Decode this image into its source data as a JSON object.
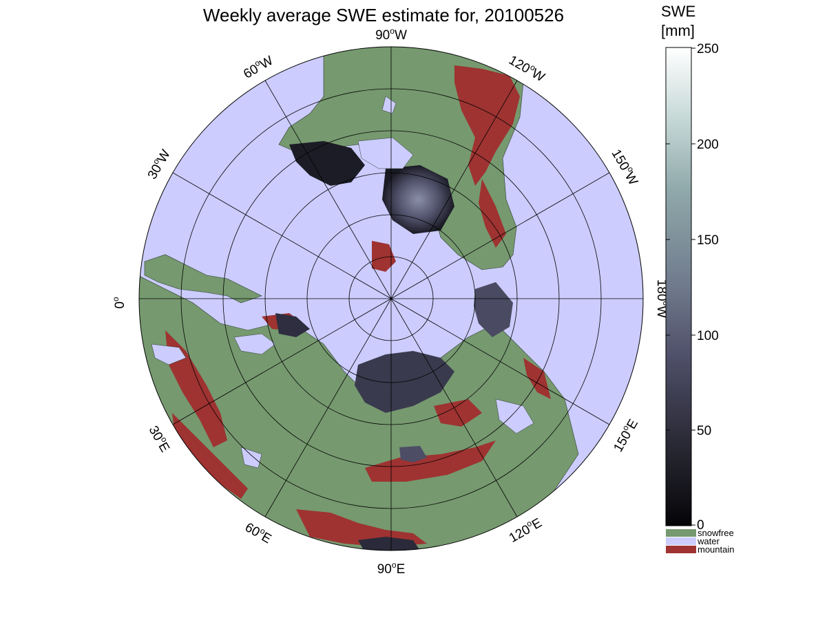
{
  "title": "Weekly average SWE estimate for, 20100526",
  "colorbar": {
    "label_line1": "SWE",
    "label_line2": "[mm]",
    "ticks": [
      "250",
      "200",
      "150",
      "100",
      "50",
      "0"
    ],
    "range": [
      0,
      250
    ],
    "categories": [
      {
        "name": "snowfree",
        "color": "#76996f"
      },
      {
        "name": "water",
        "color": "#ccccff"
      },
      {
        "name": "mountain",
        "color": "#9e3331"
      }
    ]
  },
  "longitude_labels": [
    {
      "num": "90",
      "dir": "W"
    },
    {
      "num": "120",
      "dir": "W"
    },
    {
      "num": "150",
      "dir": "W"
    },
    {
      "num": "180",
      "dir": "W"
    },
    {
      "num": "150",
      "dir": "E"
    },
    {
      "num": "120",
      "dir": "E"
    },
    {
      "num": "90",
      "dir": "E"
    },
    {
      "num": "60",
      "dir": "E"
    },
    {
      "num": "30",
      "dir": "E"
    },
    {
      "num": "0",
      "dir": ""
    },
    {
      "num": "30",
      "dir": "W"
    },
    {
      "num": "60",
      "dir": "W"
    }
  ],
  "colors": {
    "water": "#ccccff",
    "snowfree": "#76996f",
    "mountain": "#9e3331",
    "swe_low": "#0a0a10",
    "swe_mid": "#5a5a78",
    "swe_high": "#ffffff"
  }
}
